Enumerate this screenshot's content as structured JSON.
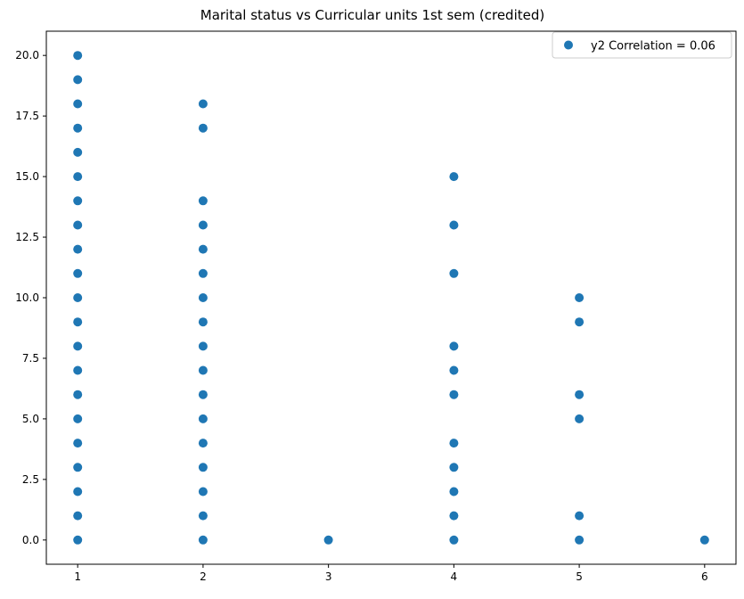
{
  "chart_data": {
    "type": "scatter",
    "title": "Marital status vs Curricular units 1st sem (credited)",
    "xlabel": "",
    "ylabel": "",
    "xlim": [
      0.75,
      6.25
    ],
    "ylim": [
      -1.0,
      21.0
    ],
    "x_ticks": [
      1,
      2,
      3,
      4,
      5,
      6
    ],
    "x_tick_labels": [
      "1",
      "2",
      "3",
      "4",
      "5",
      "6"
    ],
    "y_ticks": [
      0,
      2.5,
      5,
      7.5,
      10,
      12.5,
      15,
      17.5,
      20
    ],
    "y_tick_labels": [
      "0.0",
      "2.5",
      "5.0",
      "7.5",
      "10.0",
      "12.5",
      "15.0",
      "17.5",
      "20.0"
    ],
    "grid": false,
    "legend_position": "top-right",
    "marker_color": "#1f77b4",
    "series": [
      {
        "name": "y2 Correlation = 0.06",
        "points": [
          [
            1,
            0
          ],
          [
            1,
            1
          ],
          [
            1,
            2
          ],
          [
            1,
            3
          ],
          [
            1,
            4
          ],
          [
            1,
            5
          ],
          [
            1,
            6
          ],
          [
            1,
            7
          ],
          [
            1,
            8
          ],
          [
            1,
            9
          ],
          [
            1,
            10
          ],
          [
            1,
            11
          ],
          [
            1,
            12
          ],
          [
            1,
            13
          ],
          [
            1,
            14
          ],
          [
            1,
            15
          ],
          [
            1,
            16
          ],
          [
            1,
            17
          ],
          [
            1,
            18
          ],
          [
            1,
            19
          ],
          [
            1,
            20
          ],
          [
            2,
            0
          ],
          [
            2,
            1
          ],
          [
            2,
            2
          ],
          [
            2,
            3
          ],
          [
            2,
            4
          ],
          [
            2,
            5
          ],
          [
            2,
            6
          ],
          [
            2,
            7
          ],
          [
            2,
            8
          ],
          [
            2,
            9
          ],
          [
            2,
            10
          ],
          [
            2,
            11
          ],
          [
            2,
            12
          ],
          [
            2,
            13
          ],
          [
            2,
            14
          ],
          [
            2,
            17
          ],
          [
            2,
            18
          ],
          [
            3,
            0
          ],
          [
            4,
            0
          ],
          [
            4,
            1
          ],
          [
            4,
            2
          ],
          [
            4,
            3
          ],
          [
            4,
            4
          ],
          [
            4,
            6
          ],
          [
            4,
            7
          ],
          [
            4,
            8
          ],
          [
            4,
            11
          ],
          [
            4,
            13
          ],
          [
            4,
            15
          ],
          [
            5,
            0
          ],
          [
            5,
            1
          ],
          [
            5,
            5
          ],
          [
            5,
            6
          ],
          [
            5,
            9
          ],
          [
            5,
            10
          ],
          [
            6,
            0
          ]
        ]
      }
    ]
  }
}
